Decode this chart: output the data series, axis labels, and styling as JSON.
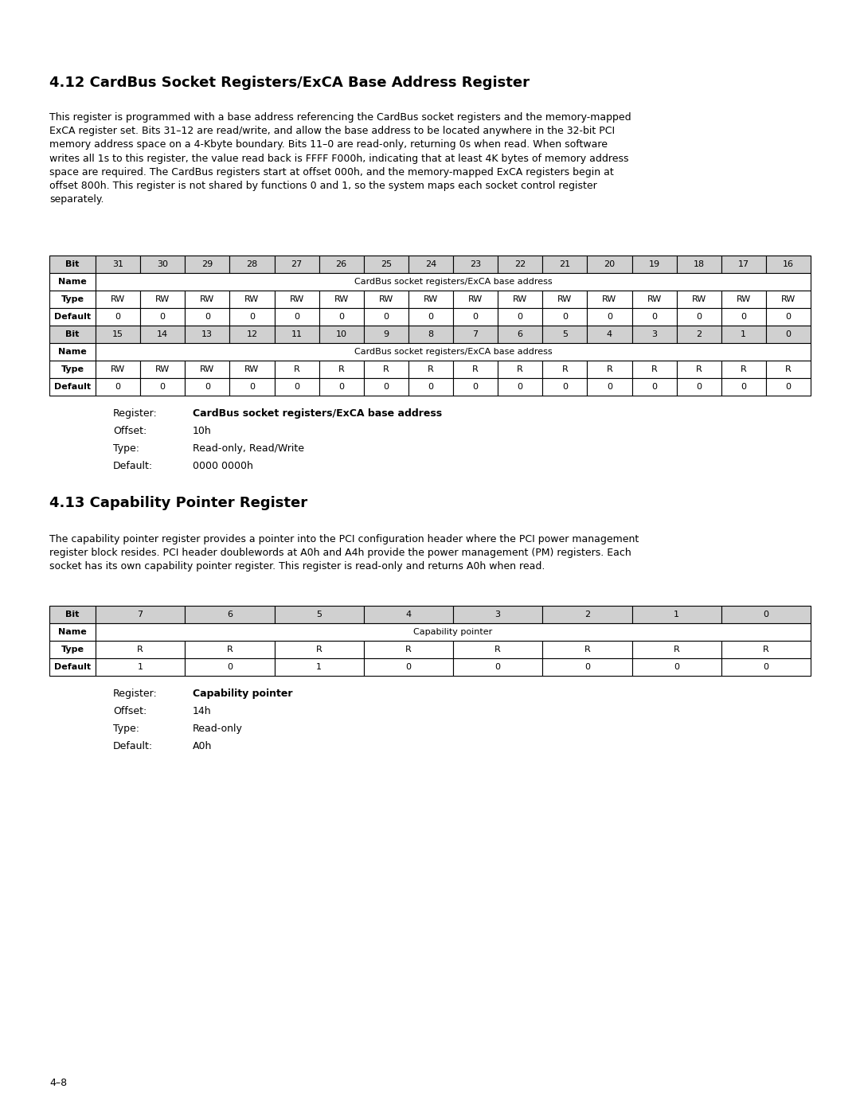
{
  "section1_title": "4.12 CardBus Socket Registers/ExCA Base Address Register",
  "section1_body": "This register is programmed with a base address referencing the CardBus socket registers and the memory-mapped\nExCA register set. Bits 31–12 are read/write, and allow the base address to be located anywhere in the 32-bit PCI\nmemory address space on a 4-Kbyte boundary. Bits 11–0 are read-only, returning 0s when read. When software\nwrites all 1s to this register, the value read back is FFFF F000h, indicating that at least 4K bytes of memory address\nspace are required. The CardBus registers start at offset 000h, and the memory-mapped ExCA registers begin at\noffset 800h. This register is not shared by functions 0 and 1, so the system maps each socket control register\nseparately.",
  "table1_upper_bits": [
    "31",
    "30",
    "29",
    "28",
    "27",
    "26",
    "25",
    "24",
    "23",
    "22",
    "21",
    "20",
    "19",
    "18",
    "17",
    "16"
  ],
  "table1_upper_name": "CardBus socket registers/ExCA base address",
  "table1_upper_type": [
    "RW",
    "RW",
    "RW",
    "RW",
    "RW",
    "RW",
    "RW",
    "RW",
    "RW",
    "RW",
    "RW",
    "RW",
    "RW",
    "RW",
    "RW",
    "RW"
  ],
  "table1_upper_default": [
    "0",
    "0",
    "0",
    "0",
    "0",
    "0",
    "0",
    "0",
    "0",
    "0",
    "0",
    "0",
    "0",
    "0",
    "0",
    "0"
  ],
  "table1_lower_bits": [
    "15",
    "14",
    "13",
    "12",
    "11",
    "10",
    "9",
    "8",
    "7",
    "6",
    "5",
    "4",
    "3",
    "2",
    "1",
    "0"
  ],
  "table1_lower_name": "CardBus socket registers/ExCA base address",
  "table1_lower_type": [
    "RW",
    "RW",
    "RW",
    "RW",
    "R",
    "R",
    "R",
    "R",
    "R",
    "R",
    "R",
    "R",
    "R",
    "R",
    "R",
    "R"
  ],
  "table1_lower_default": [
    "0",
    "0",
    "0",
    "0",
    "0",
    "0",
    "0",
    "0",
    "0",
    "0",
    "0",
    "0",
    "0",
    "0",
    "0",
    "0"
  ],
  "reg1_register_label": "Register:",
  "reg1_register_value": "CardBus socket registers/ExCA base address",
  "reg1_offset_label": "Offset:",
  "reg1_offset_value": "10h",
  "reg1_type_label": "Type:",
  "reg1_type_value": "Read-only, Read/Write",
  "reg1_default_label": "Default:",
  "reg1_default_value": "0000 0000h",
  "section2_title": "4.13 Capability Pointer Register",
  "section2_body": "The capability pointer register provides a pointer into the PCI configuration header where the PCI power management\nregister block resides. PCI header doublewords at A0h and A4h provide the power management (PM) registers. Each\nsocket has its own capability pointer register. This register is read-only and returns A0h when read.",
  "table2_bits": [
    "7",
    "6",
    "5",
    "4",
    "3",
    "2",
    "1",
    "0"
  ],
  "table2_name": "Capability pointer",
  "table2_type": [
    "R",
    "R",
    "R",
    "R",
    "R",
    "R",
    "R",
    "R"
  ],
  "table2_default": [
    "1",
    "0",
    "1",
    "0",
    "0",
    "0",
    "0",
    "0"
  ],
  "reg2_register_label": "Register:",
  "reg2_register_value": "Capability pointer",
  "reg2_offset_label": "Offset:",
  "reg2_offset_value": "14h",
  "reg2_type_label": "Type:",
  "reg2_type_value": "Read-only",
  "reg2_default_label": "Default:",
  "reg2_default_value": "A0h",
  "page_num": "4–8",
  "bg_color": "#ffffff",
  "text_color": "#000000"
}
